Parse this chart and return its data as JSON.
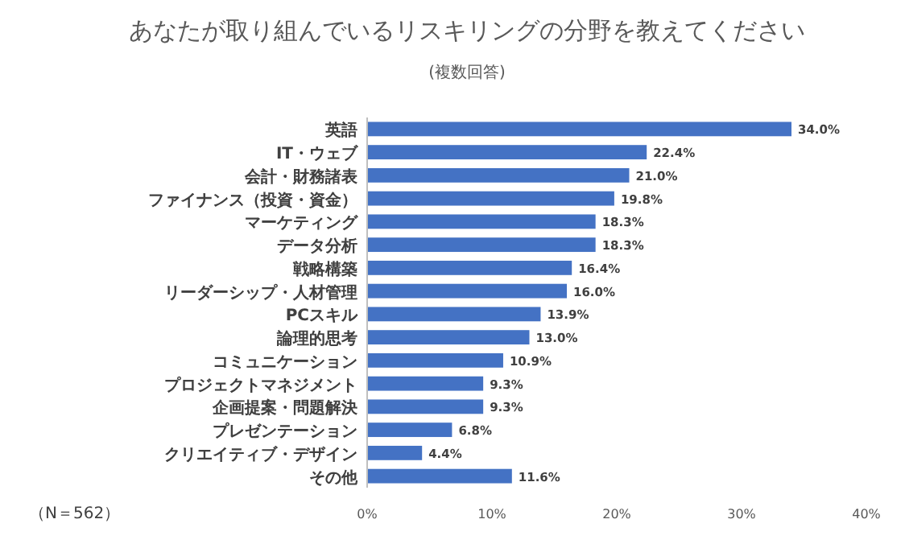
{
  "chart_data": {
    "type": "bar",
    "orientation": "horizontal",
    "title": "あなたが取り組んでいるリスキリングの分野を教えてください",
    "subtitle": "(複数回答)",
    "categories": [
      "英語",
      "IT・ウェブ",
      "会計・財務諸表",
      "ファイナンス（投資・資金）",
      "マーケティング",
      "データ分析",
      "戦略構築",
      "リーダーシップ・人材管理",
      "PCスキル",
      "論理的思考",
      "コミュニケーション",
      "プロジェクトマネジメント",
      "企画提案・問題解決",
      "プレゼンテーション",
      "クリエイティブ・デザイン",
      "その他"
    ],
    "values": [
      34.0,
      22.4,
      21.0,
      19.8,
      18.3,
      18.3,
      16.4,
      16.0,
      13.9,
      13.0,
      10.9,
      9.3,
      9.3,
      6.8,
      4.4,
      11.6
    ],
    "value_labels": [
      "34.0%",
      "22.4%",
      "21.0%",
      "19.8%",
      "18.3%",
      "18.3%",
      "16.4%",
      "16.0%",
      "13.9%",
      "13.0%",
      "10.9%",
      "9.3%",
      "9.3%",
      "6.8%",
      "4.4%",
      "11.6%"
    ],
    "color": "#4472c4",
    "xlim": [
      0,
      40
    ],
    "xticks": [
      {
        "value": 0,
        "label": "0%"
      },
      {
        "value": 10,
        "label": "10%"
      },
      {
        "value": 20,
        "label": "20%"
      },
      {
        "value": 30,
        "label": "30%"
      },
      {
        "value": 40,
        "label": "40%"
      }
    ],
    "annotations": [
      "（N＝562）"
    ]
  }
}
